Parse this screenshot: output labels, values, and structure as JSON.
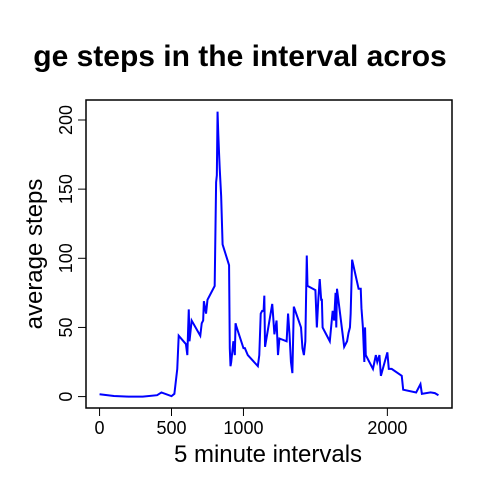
{
  "chart_data": {
    "type": "line",
    "title": "ge steps in the interval acros",
    "xlabel": "5 minute intervals",
    "ylabel": "average steps",
    "x": [
      0,
      100,
      200,
      300,
      400,
      430,
      500,
      520,
      540,
      550,
      600,
      610,
      615,
      620,
      625,
      640,
      700,
      710,
      720,
      725,
      740,
      750,
      800,
      810,
      815,
      820,
      825,
      830,
      835,
      845,
      855,
      900,
      905,
      910,
      915,
      930,
      940,
      945,
      950,
      1000,
      1010,
      1030,
      1100,
      1110,
      1120,
      1130,
      1140,
      1145,
      1150,
      1200,
      1205,
      1215,
      1230,
      1240,
      1250,
      1300,
      1310,
      1320,
      1330,
      1340,
      1350,
      1400,
      1410,
      1420,
      1430,
      1440,
      1445,
      1500,
      1510,
      1520,
      1530,
      1540,
      1545,
      1550,
      1600,
      1620,
      1630,
      1640,
      1645,
      1650,
      1700,
      1720,
      1730,
      1740,
      1745,
      1755,
      1800,
      1810,
      1815,
      1820,
      1830,
      1840,
      1845,
      1850,
      1900,
      1920,
      1930,
      1945,
      1955,
      2000,
      2010,
      2030,
      2100,
      2110,
      2200,
      2230,
      2240,
      2300,
      2330,
      2355
    ],
    "series": [
      {
        "name": "average steps",
        "color": "#0000ff",
        "values": [
          1.7,
          0.4,
          0,
          0,
          1,
          3,
          0.3,
          2,
          20,
          44,
          38,
          30,
          47,
          63,
          40,
          55,
          44,
          53,
          55,
          69,
          60,
          70,
          80,
          155,
          160,
          206,
          190,
          177,
          165,
          145,
          110,
          95,
          35,
          22,
          25,
          40,
          30,
          53,
          51,
          35,
          35,
          30,
          22,
          30,
          60,
          62,
          62,
          73,
          36,
          67,
          60,
          45,
          55,
          30,
          42,
          40,
          60,
          45,
          25,
          17,
          65,
          50,
          35,
          30,
          40,
          102,
          80,
          77,
          50,
          70,
          85,
          70,
          70,
          50,
          40,
          62,
          55,
          75,
          50,
          78,
          36,
          40,
          46,
          50,
          60,
          99,
          78,
          78,
          78,
          64,
          50,
          25,
          50,
          30,
          20,
          30,
          25,
          30,
          15,
          32,
          20,
          20,
          15,
          5,
          3,
          9,
          2,
          3,
          2.5,
          1
        ]
      }
    ],
    "xlim": [
      -94.2,
      2449.2
    ],
    "xticks": [
      0,
      500,
      1000,
      2000
    ],
    "ylim": [
      -8.25,
      214.45
    ],
    "yticks": [
      0,
      50,
      100,
      150,
      200
    ]
  }
}
